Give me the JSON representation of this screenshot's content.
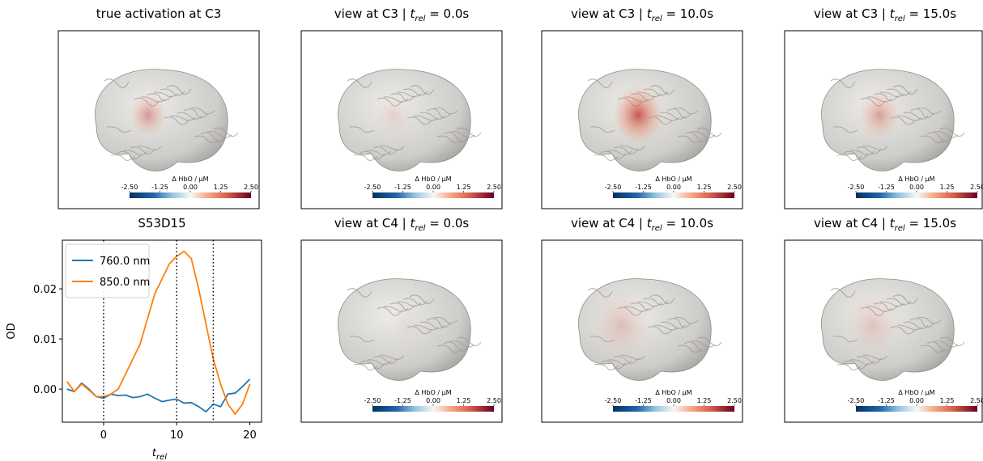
{
  "chart_data": [
    {
      "type": "image",
      "title": "true activation at C3",
      "colorbar": {
        "label": "Δ HbO / µM",
        "lim": [
          -2.5,
          2.5
        ],
        "ticks": [
          {
            "value": -2.5,
            "label": "-2.50"
          },
          {
            "value": -1.25,
            "label": "-1.25"
          },
          {
            "value": 0,
            "label": "0.00"
          },
          {
            "value": 1.25,
            "label": "1.25"
          },
          {
            "value": 2.5,
            "label": "2.50"
          }
        ]
      }
    },
    {
      "type": "image",
      "title": [
        "view at C3 | ",
        "t",
        "rel",
        " = 0.0s"
      ],
      "colorbar": {
        "label": "Δ HbO / µM",
        "lim": [
          -2.5,
          2.5
        ],
        "ticks": [
          {
            "value": -2.5,
            "label": "-2.50"
          },
          {
            "value": -1.25,
            "label": "-1.25"
          },
          {
            "value": 0,
            "label": "0.00"
          },
          {
            "value": 1.25,
            "label": "1.25"
          },
          {
            "value": 2.5,
            "label": "2.50"
          }
        ]
      }
    },
    {
      "type": "image",
      "title": [
        "view at C3 | ",
        "t",
        "rel",
        " = 10.0s"
      ],
      "colorbar": {
        "label": "Δ HbO / µM",
        "lim": [
          -2.5,
          2.5
        ],
        "ticks": [
          {
            "value": -2.5,
            "label": "-2.50"
          },
          {
            "value": -1.25,
            "label": "-1.25"
          },
          {
            "value": 0,
            "label": "0.00"
          },
          {
            "value": 1.25,
            "label": "1.25"
          },
          {
            "value": 2.5,
            "label": "2.50"
          }
        ]
      }
    },
    {
      "type": "image",
      "title": [
        "view at C3 | ",
        "t",
        "rel",
        " = 15.0s"
      ],
      "colorbar": {
        "label": "Δ HbO / µM",
        "lim": [
          -2.5,
          2.5
        ],
        "ticks": [
          {
            "value": -2.5,
            "label": "-2.50"
          },
          {
            "value": -1.25,
            "label": "-1.25"
          },
          {
            "value": 0,
            "label": "0.00"
          },
          {
            "value": 1.25,
            "label": "1.25"
          },
          {
            "value": 2.5,
            "label": "2.50"
          }
        ]
      }
    },
    {
      "type": "line",
      "title": "S53D15",
      "xlabel": [
        "t",
        "rel"
      ],
      "ylabel": "OD",
      "x": [
        -5,
        -4,
        -3,
        -2,
        -1,
        0,
        1,
        2,
        3,
        4,
        5,
        6,
        7,
        8,
        9,
        10,
        11,
        12,
        13,
        14,
        15,
        16,
        17,
        18,
        19,
        20
      ],
      "series": [
        {
          "name": "760.0 nm",
          "color": "#1f77b4",
          "values": [
            0.0,
            -0.0005,
            0.0012,
            0.0,
            -0.0015,
            -0.0018,
            -0.001,
            -0.0013,
            -0.0012,
            -0.0017,
            -0.0015,
            -0.001,
            -0.0018,
            -0.0025,
            -0.0022,
            -0.002,
            -0.0028,
            -0.0027,
            -0.0035,
            -0.0045,
            -0.003,
            -0.0035,
            -0.001,
            -0.0008,
            0.0005,
            0.002
          ]
        },
        {
          "name": "850.0 nm",
          "color": "#ff7f0e",
          "values": [
            0.0015,
            -0.0005,
            0.001,
            -0.0002,
            -0.0015,
            -0.0015,
            -0.001,
            0.0,
            0.003,
            0.006,
            0.009,
            0.014,
            0.019,
            0.022,
            0.025,
            0.0265,
            0.0275,
            0.026,
            0.02,
            0.013,
            0.006,
            0.001,
            -0.003,
            -0.005,
            -0.003,
            0.001
          ]
        }
      ],
      "vlines": [
        0,
        10,
        15
      ],
      "xlim": [
        -5.64,
        21.6
      ],
      "xticks": [
        0,
        10,
        20
      ],
      "ylim": [
        -0.0066,
        0.0297
      ],
      "yticks": [
        {
          "value": 0,
          "label": "0.00"
        },
        {
          "value": 0.01,
          "label": "0.01"
        },
        {
          "value": 0.02,
          "label": "0.02"
        }
      ],
      "legend": "upper left"
    },
    {
      "type": "image",
      "title": [
        "view at C4 | ",
        "t",
        "rel",
        " = 0.0s"
      ],
      "colorbar": {
        "label": "Δ HbO / µM",
        "lim": [
          -2.5,
          2.5
        ],
        "ticks": [
          {
            "value": -2.5,
            "label": "-2.50"
          },
          {
            "value": -1.25,
            "label": "-1.25"
          },
          {
            "value": 0,
            "label": "0.00"
          },
          {
            "value": 1.25,
            "label": "1.25"
          },
          {
            "value": 2.5,
            "label": "2.50"
          }
        ]
      }
    },
    {
      "type": "image",
      "title": [
        "view at C4 | ",
        "t",
        "rel",
        " = 10.0s"
      ],
      "colorbar": {
        "label": "Δ HbO / µM",
        "lim": [
          -2.5,
          2.5
        ],
        "ticks": [
          {
            "value": -2.5,
            "label": "-2.50"
          },
          {
            "value": -1.25,
            "label": "-1.25"
          },
          {
            "value": 0,
            "label": "0.00"
          },
          {
            "value": 1.25,
            "label": "1.25"
          },
          {
            "value": 2.5,
            "label": "2.50"
          }
        ]
      }
    },
    {
      "type": "image",
      "title": [
        "view at C4 | ",
        "t",
        "rel",
        " = 15.0s"
      ],
      "colorbar": {
        "label": "Δ HbO / µM",
        "lim": [
          -2.5,
          2.5
        ],
        "ticks": [
          {
            "value": -2.5,
            "label": "-2.50"
          },
          {
            "value": -1.25,
            "label": "-1.25"
          },
          {
            "value": 0,
            "label": "0.00"
          },
          {
            "value": 1.25,
            "label": "1.25"
          },
          {
            "value": 2.5,
            "label": "2.50"
          }
        ]
      }
    }
  ]
}
